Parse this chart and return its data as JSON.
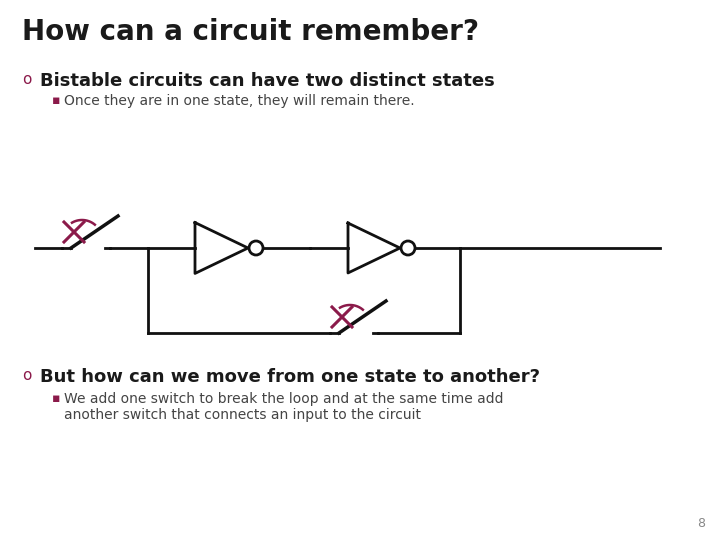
{
  "title": "How can a circuit remember?",
  "bullet1": "Bistable circuits can have two distinct states",
  "sub_bullet1": "Once they are in one state, they will remain there.",
  "bullet2": "But how can we move from one state to another?",
  "sub_bullet2": "We add one switch to break the loop and at the same time add\nanother switch that connects an input to the circuit",
  "page_number": "8",
  "bg_color": "#ffffff",
  "title_color": "#1a1a1a",
  "bullet_color": "#1a1a1a",
  "sub_bullet_color": "#444444",
  "bullet_marker_color": "#8b1a4a",
  "switch_color": "#8b1a4a",
  "circuit_color": "#111111",
  "title_fontsize": 20,
  "bullet_fontsize": 13,
  "sub_bullet_fontsize": 10,
  "page_fontsize": 9
}
